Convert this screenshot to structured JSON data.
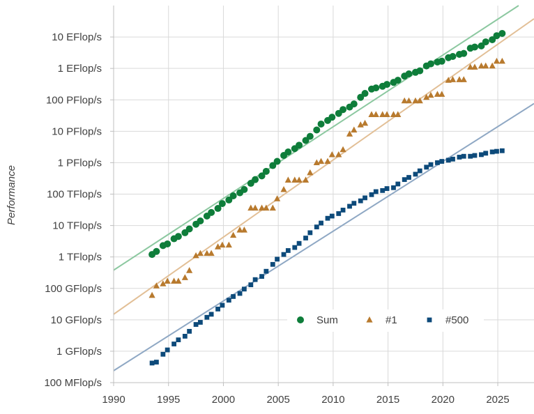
{
  "chart_data": {
    "type": "scatter",
    "title": "",
    "xlabel": "",
    "ylabel": "Performance",
    "y_scale": "log",
    "grid": true,
    "legend_position": "bottom-center",
    "xlim": [
      1990,
      2028.3
    ],
    "ylim": [
      100000000.0,
      1e+20
    ],
    "x_ticks": [
      1990,
      1995,
      2000,
      2005,
      2010,
      2015,
      2020,
      2025
    ],
    "x_tick_labels": [
      "1990",
      "1995",
      "2000",
      "2005",
      "2010",
      "2015",
      "2020",
      "2025"
    ],
    "y_ticks": [
      100000000.0,
      1000000000.0,
      10000000000.0,
      100000000000.0,
      1000000000000.0,
      10000000000000.0,
      100000000000000.0,
      1000000000000000.0,
      1e+16,
      1e+17,
      1e+18,
      1e+19
    ],
    "y_tick_labels": [
      "100 MFlop/s",
      "1 GFlop/s",
      "10 GFlop/s",
      "100 GFlop/s",
      "1 TFlop/s",
      "10 TFlop/s",
      "100 TFlop/s",
      "1 PFlop/s",
      "10 PFlop/s",
      "100 PFlop/s",
      "1 EFlop/s",
      "10 EFlop/s"
    ],
    "series": [
      {
        "name": "Sum",
        "marker": "circle",
        "color": "#0e7d3a",
        "trend_color": "#8cc8a0",
        "trend": [
          [
            1990,
            380000000000.0
          ],
          [
            2026.9,
            1e+20
          ]
        ],
        "points": [
          [
            1993.5,
            1200000000000.0
          ],
          [
            1993.9,
            1500000000000.0
          ],
          [
            1994.5,
            2300000000000.0
          ],
          [
            1994.9,
            2600000000000.0
          ],
          [
            1995.5,
            3800000000000.0
          ],
          [
            1995.9,
            4500000000000.0
          ],
          [
            1996.5,
            5900000000000.0
          ],
          [
            1996.9,
            7800000000000.0
          ],
          [
            1997.5,
            11000000000000.0
          ],
          [
            1997.9,
            14000000000000.0
          ],
          [
            1998.5,
            20000000000000.0
          ],
          [
            1998.9,
            26000000000000.0
          ],
          [
            1999.5,
            35000000000000.0
          ],
          [
            1999.9,
            50000000000000.0
          ],
          [
            2000.5,
            65000000000000.0
          ],
          [
            2000.9,
            88000000000000.0
          ],
          [
            2001.5,
            110000000000000.0
          ],
          [
            2001.9,
            140000000000000.0
          ],
          [
            2002.5,
            220000000000000.0
          ],
          [
            2002.9,
            290000000000000.0
          ],
          [
            2003.5,
            380000000000000.0
          ],
          [
            2003.9,
            530000000000000.0
          ],
          [
            2004.5,
            810000000000000.0
          ],
          [
            2004.9,
            1100000000000000.0
          ],
          [
            2005.5,
            1700000000000000.0
          ],
          [
            2005.9,
            2200000000000000.0
          ],
          [
            2006.5,
            2800000000000000.0
          ],
          [
            2006.9,
            3600000000000000.0
          ],
          [
            2007.5,
            5100000000000000.0
          ],
          [
            2007.9,
            6900000000000000.0
          ],
          [
            2008.5,
            1.1e+16
          ],
          [
            2008.9,
            1.7e+16
          ],
          [
            2009.5,
            2.2e+16
          ],
          [
            2009.9,
            2.8e+16
          ],
          [
            2010.5,
            3.7e+16
          ],
          [
            2010.9,
            4.9e+16
          ],
          [
            2011.5,
            5.9e+16
          ],
          [
            2011.9,
            7.4e+16
          ],
          [
            2012.5,
            1.2e+17
          ],
          [
            2012.9,
            1.6e+17
          ],
          [
            2013.5,
            2.2e+17
          ],
          [
            2013.9,
            2.4e+17
          ],
          [
            2014.5,
            2.7e+17
          ],
          [
            2014.9,
            3.1e+17
          ],
          [
            2015.5,
            3.6e+17
          ],
          [
            2015.9,
            4.2e+17
          ],
          [
            2016.5,
            5.7e+17
          ],
          [
            2016.9,
            6.7e+17
          ],
          [
            2017.5,
            7.5e+17
          ],
          [
            2017.9,
            8.4e+17
          ],
          [
            2018.5,
            1.2e+18
          ],
          [
            2018.9,
            1.4e+18
          ],
          [
            2019.5,
            1.6e+18
          ],
          [
            2019.9,
            1.7e+18
          ],
          [
            2020.5,
            2.2e+18
          ],
          [
            2020.9,
            2.4e+18
          ],
          [
            2021.5,
            2.8e+18
          ],
          [
            2021.9,
            3e+18
          ],
          [
            2022.5,
            4.4e+18
          ],
          [
            2022.9,
            4.8e+18
          ],
          [
            2023.5,
            5.2e+18
          ],
          [
            2023.9,
            7e+18
          ],
          [
            2024.5,
            8.2e+18
          ],
          [
            2024.9,
            1.1e+19
          ],
          [
            2025.4,
            1.3e+19
          ]
        ]
      },
      {
        "name": "#1",
        "marker": "triangle",
        "color": "#b87a2e",
        "trend_color": "#e2bf96",
        "trend": [
          [
            1990,
            15000000000.0
          ],
          [
            2028.3,
            3.8e+19
          ]
        ],
        "points": [
          [
            1993.5,
            60000000000.0
          ],
          [
            1993.9,
            120000000000.0
          ],
          [
            1994.5,
            140000000000.0
          ],
          [
            1994.9,
            170000000000.0
          ],
          [
            1995.5,
            170000000000.0
          ],
          [
            1995.9,
            170000000000.0
          ],
          [
            1996.5,
            220000000000.0
          ],
          [
            1996.9,
            370000000000.0
          ],
          [
            1997.5,
            1100000000000.0
          ],
          [
            1997.9,
            1300000000000.0
          ],
          [
            1998.5,
            1300000000000.0
          ],
          [
            1998.9,
            1300000000000.0
          ],
          [
            1999.5,
            2100000000000.0
          ],
          [
            1999.9,
            2400000000000.0
          ],
          [
            2000.5,
            2400000000000.0
          ],
          [
            2000.9,
            4900000000000.0
          ],
          [
            2001.5,
            7200000000000.0
          ],
          [
            2001.9,
            7200000000000.0
          ],
          [
            2002.5,
            36000000000000.0
          ],
          [
            2002.9,
            36000000000000.0
          ],
          [
            2003.5,
            36000000000000.0
          ],
          [
            2003.9,
            36000000000000.0
          ],
          [
            2004.5,
            36000000000000.0
          ],
          [
            2004.9,
            71000000000000.0
          ],
          [
            2005.5,
            140000000000000.0
          ],
          [
            2005.9,
            280000000000000.0
          ],
          [
            2006.5,
            280000000000000.0
          ],
          [
            2006.9,
            280000000000000.0
          ],
          [
            2007.5,
            280000000000000.0
          ],
          [
            2007.9,
            480000000000000.0
          ],
          [
            2008.5,
            1000000000000000.0
          ],
          [
            2008.9,
            1100000000000000.0
          ],
          [
            2009.5,
            1100000000000000.0
          ],
          [
            2009.9,
            1800000000000000.0
          ],
          [
            2010.5,
            1800000000000000.0
          ],
          [
            2010.9,
            2600000000000000.0
          ],
          [
            2011.5,
            8200000000000000.0
          ],
          [
            2011.9,
            1.1e+16
          ],
          [
            2012.5,
            1.6e+16
          ],
          [
            2012.9,
            1.8e+16
          ],
          [
            2013.5,
            3.4e+16
          ],
          [
            2013.9,
            3.4e+16
          ],
          [
            2014.5,
            3.4e+16
          ],
          [
            2014.9,
            3.4e+16
          ],
          [
            2015.5,
            3.4e+16
          ],
          [
            2015.9,
            3.4e+16
          ],
          [
            2016.5,
            9.3e+16
          ],
          [
            2016.9,
            9.3e+16
          ],
          [
            2017.5,
            9.3e+16
          ],
          [
            2017.9,
            9.3e+16
          ],
          [
            2018.5,
            1.2e+17
          ],
          [
            2018.9,
            1.4e+17
          ],
          [
            2019.5,
            1.5e+17
          ],
          [
            2019.9,
            1.5e+17
          ],
          [
            2020.5,
            4.2e+17
          ],
          [
            2020.9,
            4.4e+17
          ],
          [
            2021.5,
            4.4e+17
          ],
          [
            2021.9,
            4.4e+17
          ],
          [
            2022.5,
            1.1e+18
          ],
          [
            2022.9,
            1.1e+18
          ],
          [
            2023.5,
            1.2e+18
          ],
          [
            2023.9,
            1.2e+18
          ],
          [
            2024.5,
            1.2e+18
          ],
          [
            2024.9,
            1.7e+18
          ],
          [
            2025.4,
            1.7e+18
          ]
        ]
      },
      {
        "name": "#500",
        "marker": "square",
        "color": "#0d4a7a",
        "trend_color": "#8fa8c4",
        "trend": [
          [
            1990,
            240000000.0
          ],
          [
            2028.3,
            7.6e+16
          ]
        ],
        "points": [
          [
            1993.5,
            420000000.0
          ],
          [
            1993.9,
            450000000.0
          ],
          [
            1994.5,
            800000000.0
          ],
          [
            1994.9,
            1100000000.0
          ],
          [
            1995.5,
            1700000000.0
          ],
          [
            1995.9,
            2300000000.0
          ],
          [
            1996.5,
            3000000000.0
          ],
          [
            1996.9,
            4300000000.0
          ],
          [
            1997.5,
            7100000000.0
          ],
          [
            1997.9,
            8300000000.0
          ],
          [
            1998.5,
            12000000000.0
          ],
          [
            1998.9,
            15000000000.0
          ],
          [
            1999.5,
            22000000000.0
          ],
          [
            1999.9,
            29000000000.0
          ],
          [
            2000.5,
            42000000000.0
          ],
          [
            2000.9,
            55000000000.0
          ],
          [
            2001.5,
            69000000000.0
          ],
          [
            2001.9,
            95000000000.0
          ],
          [
            2002.5,
            130000000000.0
          ],
          [
            2002.9,
            190000000000.0
          ],
          [
            2003.5,
            240000000000.0
          ],
          [
            2003.9,
            350000000000.0
          ],
          [
            2004.5,
            580000000000.0
          ],
          [
            2004.9,
            850000000000.0
          ],
          [
            2005.5,
            1200000000000.0
          ],
          [
            2005.9,
            1600000000000.0
          ],
          [
            2006.5,
            2000000000000.0
          ],
          [
            2006.9,
            2700000000000.0
          ],
          [
            2007.5,
            4000000000000.0
          ],
          [
            2007.9,
            5900000000000.0
          ],
          [
            2008.5,
            9000000000000.0
          ],
          [
            2008.9,
            12000000000000.0
          ],
          [
            2009.5,
            17000000000000.0
          ],
          [
            2009.9,
            20000000000000.0
          ],
          [
            2010.5,
            24000000000000.0
          ],
          [
            2010.9,
            31000000000000.0
          ],
          [
            2011.5,
            41000000000000.0
          ],
          [
            2011.9,
            51000000000000.0
          ],
          [
            2012.5,
            61000000000000.0
          ],
          [
            2012.9,
            76000000000000.0
          ],
          [
            2013.5,
            96000000000000.0
          ],
          [
            2013.9,
            120000000000000.0
          ],
          [
            2014.5,
            130000000000000.0
          ],
          [
            2014.9,
            150000000000000.0
          ],
          [
            2015.5,
            160000000000000.0
          ],
          [
            2015.9,
            210000000000000.0
          ],
          [
            2016.5,
            290000000000000.0
          ],
          [
            2016.9,
            340000000000000.0
          ],
          [
            2017.5,
            430000000000000.0
          ],
          [
            2017.9,
            550000000000000.0
          ],
          [
            2018.5,
            720000000000000.0
          ],
          [
            2018.9,
            870000000000000.0
          ],
          [
            2019.5,
            1000000000000000.0
          ],
          [
            2019.9,
            1100000000000000.0
          ],
          [
            2020.5,
            1200000000000000.0
          ],
          [
            2020.9,
            1300000000000000.0
          ],
          [
            2021.5,
            1500000000000000.0
          ],
          [
            2021.9,
            1600000000000000.0
          ],
          [
            2022.5,
            1600000000000000.0
          ],
          [
            2022.9,
            1700000000000000.0
          ],
          [
            2023.5,
            1800000000000000.0
          ],
          [
            2023.9,
            2000000000000000.0
          ],
          [
            2024.5,
            2200000000000000.0
          ],
          [
            2024.9,
            2300000000000000.0
          ],
          [
            2025.4,
            2400000000000000.0
          ]
        ]
      }
    ]
  }
}
